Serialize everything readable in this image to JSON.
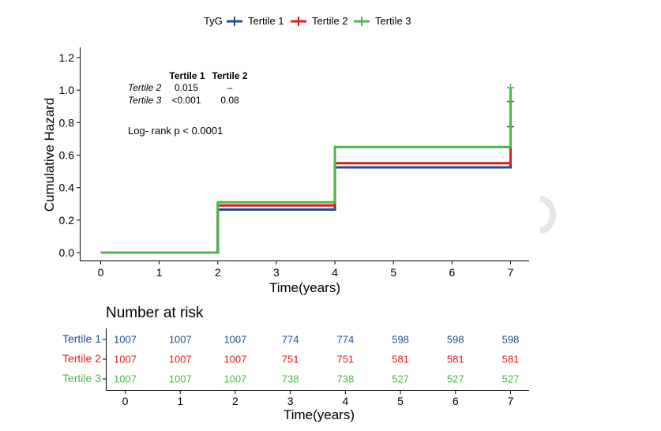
{
  "chart_data": [
    {
      "type": "line",
      "subtype": "step",
      "title": "",
      "xlabel": "Time(years)",
      "ylabel": "Cumulative Hazard",
      "xlim": [
        0,
        7
      ],
      "ylim": [
        0,
        1.2
      ],
      "xticks": [
        0,
        1,
        2,
        3,
        4,
        5,
        6,
        7
      ],
      "yticks": [
        0.0,
        0.2,
        0.4,
        0.6,
        0.8,
        1.0,
        1.2
      ],
      "ytick_labels": [
        "0.0",
        "0.2",
        "0.4",
        "0.6",
        "0.8",
        "1.0",
        "1.2"
      ],
      "grid": false,
      "legend": {
        "title": "TyG",
        "position": "top"
      },
      "series": [
        {
          "name": "Tertile 1",
          "color": "#1f4e8c",
          "x": [
            0,
            2,
            4,
            7
          ],
          "y": [
            0.0,
            0.265,
            0.525,
            0.525
          ],
          "censor": {
            "x": 7,
            "y": 0.775
          }
        },
        {
          "name": "Tertile 2",
          "color": "#e31a1c",
          "x": [
            0,
            2,
            4,
            7
          ],
          "y": [
            0.0,
            0.29,
            0.55,
            0.55
          ],
          "censor": {
            "x": 7,
            "y": 0.93
          }
        },
        {
          "name": "Tertile 3",
          "color": "#4cb848",
          "x": [
            0,
            2,
            4,
            7
          ],
          "y": [
            0.0,
            0.31,
            0.65,
            0.65
          ],
          "censor": {
            "x": 7,
            "y": 1.015
          }
        }
      ],
      "annotations": {
        "pairwise_table": {
          "col_headers": [
            "Tertile 1",
            "Tertile 2"
          ],
          "rows": [
            {
              "label": "Tertile 2",
              "values": [
                "0.015",
                "–"
              ]
            },
            {
              "label": "Tertile 3",
              "values": [
                "<0.001",
                "0.08"
              ]
            }
          ]
        },
        "logrank": "Log- rank p < 0.0001"
      }
    },
    {
      "type": "table",
      "title": "Number at risk",
      "xlabel": "Time(years)",
      "xticks": [
        0,
        1,
        2,
        3,
        4,
        5,
        6,
        7
      ],
      "rows": [
        {
          "name": "Tertile 1",
          "color": "#1f4e8c",
          "values": [
            1007,
            1007,
            1007,
            774,
            774,
            598,
            598,
            598
          ]
        },
        {
          "name": "Tertile 2",
          "color": "#e31a1c",
          "values": [
            1007,
            1007,
            1007,
            751,
            751,
            581,
            581,
            581
          ]
        },
        {
          "name": "Tertile 3",
          "color": "#4cb848",
          "values": [
            1007,
            1007,
            1007,
            738,
            738,
            527,
            527,
            527
          ]
        }
      ]
    }
  ]
}
